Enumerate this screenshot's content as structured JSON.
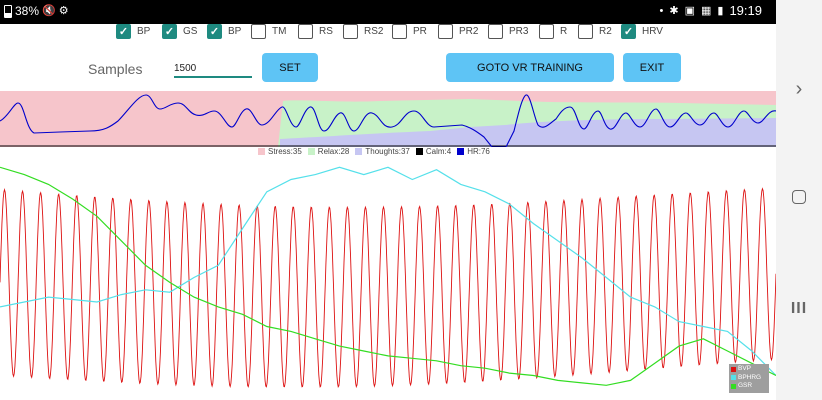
{
  "status_bar": {
    "battery": "38%",
    "clock": "19:19",
    "left_icons": [
      "battery-icon",
      "muted-icon",
      "usb-icon"
    ],
    "right_icons": [
      "notification-dot-icon",
      "bug-icon",
      "image-icon",
      "gallery-icon",
      "battery-full-icon"
    ]
  },
  "nav_bar": {
    "back_glyph": "›",
    "recents_glyph": "III"
  },
  "checkboxes": [
    {
      "label": "BP",
      "checked": true
    },
    {
      "label": "GS",
      "checked": true
    },
    {
      "label": "BP",
      "checked": true
    },
    {
      "label": "TM",
      "checked": false
    },
    {
      "label": "RS",
      "checked": false
    },
    {
      "label": "RS2",
      "checked": false
    },
    {
      "label": "PR",
      "checked": false
    },
    {
      "label": "PR2",
      "checked": false
    },
    {
      "label": "PR3",
      "checked": false
    },
    {
      "label": "R",
      "checked": false
    },
    {
      "label": "R2",
      "checked": false
    },
    {
      "label": "HRV",
      "checked": true
    }
  ],
  "controls": {
    "samples_label": "Samples",
    "samples_value": "1500",
    "set_label": "SET",
    "goto_label": "GOTO VR TRAINING",
    "exit_label": "EXIT"
  },
  "colors": {
    "accent": "#1e8a80",
    "button": "#5ec4f5",
    "stress": "#f6c5cb",
    "relax": "#c8f2c8",
    "thoughts": "#c6c6f2",
    "calm": "#000000",
    "hr": "#0000cc",
    "bvp": "#dd1111",
    "bphrg": "#55e0ea",
    "gsr": "#33dd22"
  },
  "chart_data": [
    {
      "type": "area",
      "series": [
        {
          "name": "Stress",
          "label": "Stress:35"
        },
        {
          "name": "Relax",
          "label": "Relax:28"
        },
        {
          "name": "Thoughts",
          "label": "Thoughts:37"
        },
        {
          "name": "Calm",
          "label": "Calm:4"
        },
        {
          "name": "HR",
          "label": "HR:76"
        }
      ]
    },
    {
      "type": "line",
      "series": [
        {
          "name": "BVP",
          "shape": "oscillating",
          "cycles": 43,
          "amplitude_start": 0.38,
          "amplitude_end": 0.35
        },
        {
          "name": "BPHRG",
          "y": [
            0.62,
            0.6,
            0.58,
            0.59,
            0.6,
            0.57,
            0.55,
            0.56,
            0.5,
            0.45,
            0.3,
            0.15,
            0.1,
            0.08,
            0.05,
            0.08,
            0.05,
            0.1,
            0.06,
            0.12,
            0.15,
            0.2,
            0.28,
            0.35,
            0.42,
            0.5,
            0.58,
            0.62,
            0.68,
            0.7,
            0.72,
            0.8,
            0.9
          ]
        },
        {
          "name": "GSR",
          "y": [
            0.05,
            0.08,
            0.12,
            0.18,
            0.25,
            0.35,
            0.45,
            0.52,
            0.58,
            0.62,
            0.65,
            0.7,
            0.72,
            0.75,
            0.78,
            0.8,
            0.82,
            0.83,
            0.84,
            0.86,
            0.87,
            0.89,
            0.9,
            0.92,
            0.93,
            0.94,
            0.92,
            0.85,
            0.78,
            0.75,
            0.8,
            0.85,
            0.9
          ]
        }
      ]
    }
  ]
}
